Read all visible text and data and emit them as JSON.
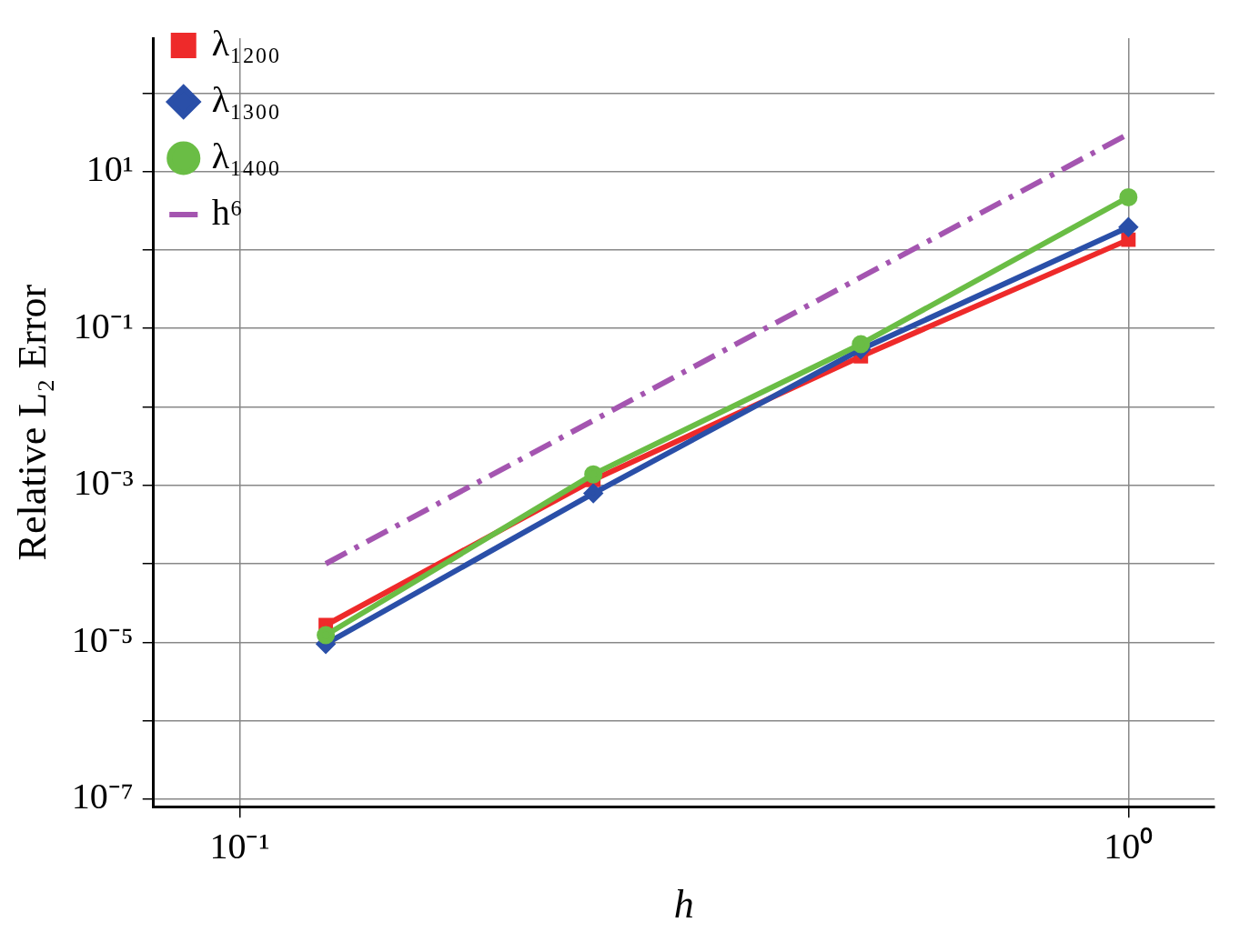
{
  "chart_data": {
    "type": "line",
    "xlabel": "h",
    "ylabel": "Relative L₂ Error",
    "log": "xy",
    "grid": true,
    "legend": "top left",
    "xlim": [
      0.08,
      1.25
    ],
    "ylim": [
      8e-08,
      500
    ],
    "xticks": [
      {
        "value": 0.1,
        "label": "10⁻¹"
      },
      {
        "value": 1,
        "label": "10⁰"
      }
    ],
    "yticks": [
      {
        "value": 1e-07,
        "label": "10⁻⁷"
      },
      {
        "value": 1e-06,
        "label": null
      },
      {
        "value": 1e-05,
        "label": "10⁻⁵"
      },
      {
        "value": 0.0001,
        "label": null
      },
      {
        "value": 0.001,
        "label": "10⁻³"
      },
      {
        "value": 0.01,
        "label": null
      },
      {
        "value": 0.1,
        "label": "10⁻¹"
      },
      {
        "value": 1,
        "label": null
      },
      {
        "value": 10,
        "label": "10¹"
      },
      {
        "value": 100,
        "label": null
      }
    ],
    "x": [
      0.125,
      0.25,
      0.5,
      1
    ],
    "series": [
      {
        "name": "λ₁₂₀₀",
        "color": "#ee2a2a",
        "marker": "square",
        "line_style": "solid",
        "values": [
          1.65e-05,
          0.00117,
          0.044,
          1.35
        ]
      },
      {
        "name": "λ₁₃₀₀",
        "color": "#2a4fa8",
        "marker": "diamond",
        "line_style": "solid",
        "values": [
          9.5e-06,
          0.00079,
          0.054,
          1.95
        ]
      },
      {
        "name": "λ₁₄₀₀",
        "color": "#6abd45",
        "marker": "circle",
        "line_style": "solid",
        "values": [
          1.23e-05,
          0.00138,
          0.063,
          4.7
        ]
      },
      {
        "name": "h⁶",
        "color": "#a455b0",
        "marker": "none",
        "line_style": "dashed",
        "x": [
          0.125,
          1
        ],
        "values": [
          0.0001,
          30
        ]
      }
    ]
  }
}
